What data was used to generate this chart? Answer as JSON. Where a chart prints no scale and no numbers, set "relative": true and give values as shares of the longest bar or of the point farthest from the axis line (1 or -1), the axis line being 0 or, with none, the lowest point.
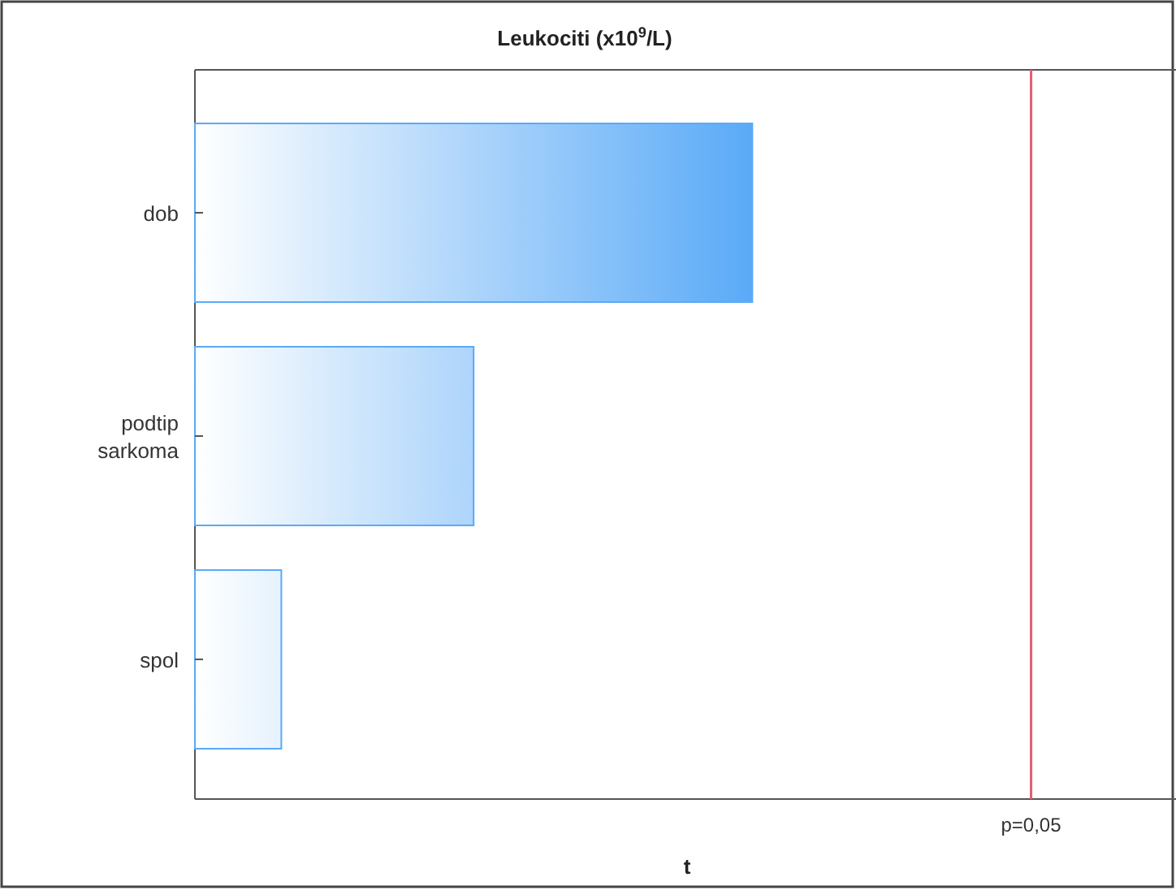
{
  "chart_data": {
    "type": "bar",
    "orientation": "horizontal",
    "relative": true,
    "title": "Leukociti (x10$^{9}$/L)",
    "xlabel": "t",
    "categories": [
      "dob",
      "podtip sarkoma",
      "spol"
    ],
    "values": [
      1,
      0.5,
      0.155
    ],
    "color": "#5aaaf7",
    "ref_lines": [
      {
        "axis": "x",
        "value": 1.5,
        "color": "#e06070"
      }
    ],
    "annotations": [
      "p=0,05"
    ]
  }
}
